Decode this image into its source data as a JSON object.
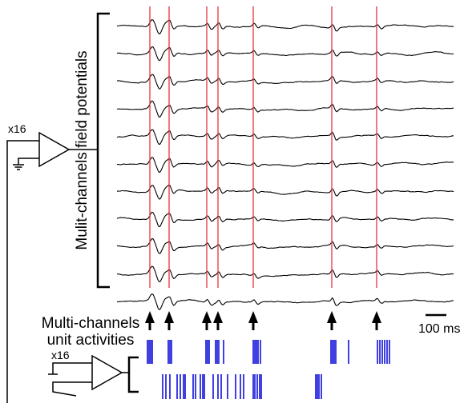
{
  "labels": {
    "field_potentials": "Mulit-channels field potentials",
    "unit_activities_line1": "Multi-channels",
    "unit_activities_line2": "unit activities",
    "amp_gain_top": "x16",
    "amp_gain_bottom": "x16",
    "scale_bar": "100 ms"
  },
  "colors": {
    "trace": "#000000",
    "event_line": "#e8323c",
    "spike": "#1010d8",
    "arrow": "#000000"
  }
}
